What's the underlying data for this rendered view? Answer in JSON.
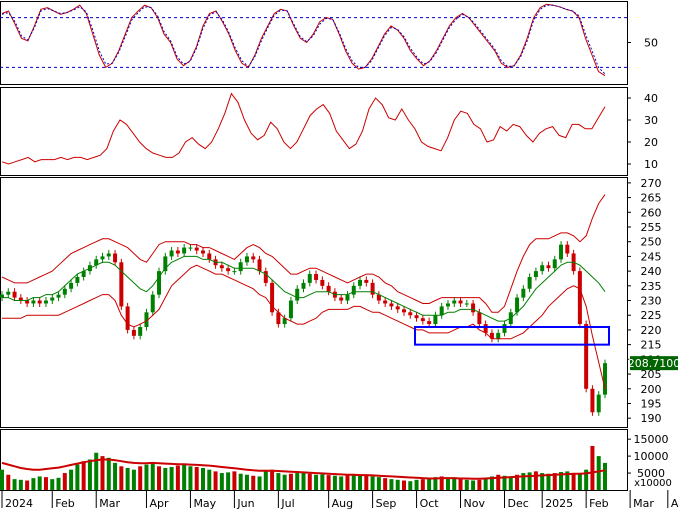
{
  "chart_data": [
    {
      "panel": "stochastic",
      "type": "line",
      "ytick_labels": [
        "50"
      ],
      "yticks": [
        50
      ],
      "ylim": [
        0,
        100
      ],
      "reference_lines": [
        80,
        20
      ],
      "series": [
        {
          "color": "#cc0000",
          "values": [
            85,
            88,
            72,
            55,
            52,
            70,
            90,
            92,
            88,
            84,
            86,
            90,
            95,
            85,
            60,
            35,
            20,
            25,
            40,
            60,
            80,
            88,
            95,
            92,
            80,
            60,
            50,
            30,
            22,
            28,
            45,
            70,
            85,
            88,
            75,
            60,
            40,
            25,
            20,
            35,
            55,
            70,
            85,
            90,
            88,
            70,
            55,
            50,
            60,
            75,
            80,
            78,
            60,
            40,
            25,
            18,
            20,
            30,
            45,
            60,
            70,
            65,
            55,
            40,
            30,
            22,
            28,
            40,
            55,
            70,
            80,
            85,
            80,
            70,
            60,
            50,
            40,
            25,
            20,
            22,
            35,
            55,
            80,
            92,
            96,
            95,
            93,
            90,
            88,
            80,
            55,
            35,
            15,
            10
          ]
        },
        {
          "color": "#0000cc",
          "dashed": true,
          "values": [
            84,
            86,
            75,
            58,
            53,
            68,
            88,
            91,
            88,
            85,
            86,
            89,
            93,
            87,
            65,
            40,
            24,
            25,
            38,
            57,
            77,
            86,
            93,
            92,
            82,
            63,
            52,
            33,
            24,
            27,
            43,
            67,
            83,
            87,
            77,
            62,
            43,
            28,
            21,
            33,
            52,
            68,
            83,
            89,
            88,
            72,
            57,
            51,
            58,
            72,
            79,
            78,
            62,
            43,
            28,
            20,
            20,
            28,
            43,
            58,
            68,
            66,
            57,
            43,
            32,
            24,
            27,
            38,
            53,
            68,
            78,
            84,
            80,
            72,
            62,
            52,
            42,
            28,
            21,
            22,
            33,
            52,
            77,
            90,
            95,
            95,
            93,
            90,
            88,
            82,
            60,
            40,
            20,
            12
          ]
        }
      ]
    },
    {
      "panel": "indicator",
      "type": "line",
      "ytick_labels": [
        "10",
        "20",
        "30",
        "40"
      ],
      "yticks": [
        10,
        20,
        30,
        40
      ],
      "ylim": [
        5,
        45
      ],
      "series": [
        {
          "color": "#cc0000",
          "values": [
            11,
            10,
            11,
            12,
            13,
            11,
            12,
            12,
            12,
            13,
            12,
            13,
            13,
            12,
            13,
            14,
            17,
            25,
            30,
            28,
            24,
            20,
            17,
            15,
            14,
            13,
            13,
            15,
            20,
            22,
            19,
            17,
            20,
            26,
            33,
            42,
            38,
            30,
            24,
            21,
            23,
            29,
            26,
            20,
            17,
            20,
            26,
            32,
            35,
            37,
            33,
            25,
            21,
            17,
            19,
            25,
            35,
            40,
            37,
            31,
            30,
            35,
            30,
            26,
            20,
            18,
            17,
            16,
            22,
            30,
            34,
            33,
            28,
            26,
            20,
            21,
            27,
            25,
            28,
            27,
            23,
            20,
            24,
            26,
            27,
            23,
            22,
            28,
            28,
            26,
            26,
            31,
            36
          ]
        }
      ]
    },
    {
      "panel": "price",
      "type": "candlestick",
      "ytick_labels": [
        "190",
        "195",
        "200",
        "205",
        "210",
        "215",
        "220",
        "225",
        "230",
        "235",
        "240",
        "245",
        "250",
        "255",
        "260",
        "265",
        "270"
      ],
      "yticks": [
        190,
        195,
        200,
        205,
        210,
        215,
        220,
        225,
        230,
        235,
        240,
        245,
        250,
        255,
        260,
        265,
        270
      ],
      "ylim": [
        187,
        272
      ],
      "last_price_label": "208.7100",
      "last_price": 208.71,
      "close": [
        232,
        233,
        231,
        230,
        229,
        230,
        229,
        230,
        231,
        232,
        234,
        236,
        238,
        240,
        242,
        244,
        245,
        246,
        243,
        228,
        220,
        218,
        221,
        226,
        232,
        240,
        245,
        247,
        246,
        248,
        248,
        247,
        246,
        244,
        242,
        241,
        240,
        240,
        243,
        245,
        244,
        240,
        236,
        226,
        222,
        224,
        230,
        234,
        236,
        239,
        237,
        235,
        233,
        231,
        230,
        232,
        235,
        237,
        236,
        232,
        230,
        229,
        228,
        227,
        226,
        225,
        224,
        223,
        222,
        225,
        228,
        229,
        230,
        229,
        229,
        226,
        222,
        219,
        217,
        219,
        222,
        226,
        231,
        234,
        238,
        240,
        242,
        241,
        244,
        249,
        246,
        240,
        222,
        200,
        192,
        198,
        208.71
      ],
      "bollinger_upper": [
        238,
        237,
        236,
        236,
        236,
        237,
        238,
        239,
        240,
        242,
        244,
        246,
        247,
        248,
        249,
        250,
        251,
        251,
        250,
        249,
        248,
        246,
        244,
        243,
        246,
        249,
        250,
        250,
        250,
        250,
        249,
        249,
        248,
        248,
        247,
        246,
        245,
        244,
        246,
        248,
        249,
        248,
        246,
        245,
        243,
        241,
        239,
        239,
        240,
        241,
        241,
        240,
        239,
        238,
        237,
        236,
        237,
        238,
        239,
        239,
        238,
        236,
        235,
        233,
        232,
        231,
        230,
        229,
        229,
        230,
        231,
        231,
        231,
        231,
        231,
        231,
        231,
        229,
        226,
        226,
        228,
        234,
        240,
        245,
        249,
        251,
        251,
        251,
        252,
        253,
        253,
        252,
        250,
        252,
        258,
        263,
        266
      ],
      "bollinger_mid": [
        231,
        231,
        230,
        230,
        230,
        231,
        231,
        232,
        232,
        233,
        235,
        237,
        239,
        240,
        241,
        242,
        243,
        243,
        242,
        240,
        238,
        236,
        234,
        233,
        235,
        238,
        241,
        243,
        244,
        245,
        245,
        245,
        244,
        244,
        243,
        243,
        242,
        241,
        241,
        241,
        241,
        240,
        239,
        237,
        235,
        233,
        232,
        231,
        231,
        232,
        233,
        233,
        233,
        232,
        232,
        232,
        233,
        233,
        233,
        233,
        232,
        231,
        230,
        229,
        228,
        227,
        226,
        225,
        225,
        225,
        225,
        226,
        226,
        227,
        227,
        227,
        226,
        225,
        224,
        223,
        223,
        224,
        226,
        228,
        231,
        234,
        236,
        238,
        240,
        242,
        243,
        243,
        242,
        240,
        238,
        236,
        233
      ],
      "bollinger_lower": [
        224,
        224,
        224,
        224,
        225,
        225,
        225,
        225,
        225,
        225,
        226,
        227,
        228,
        229,
        230,
        231,
        232,
        232,
        230,
        225,
        222,
        221,
        222,
        223,
        225,
        227,
        231,
        235,
        237,
        239,
        241,
        242,
        241,
        240,
        239,
        239,
        238,
        237,
        236,
        235,
        234,
        232,
        231,
        228,
        226,
        224,
        223,
        222,
        222,
        223,
        224,
        226,
        227,
        227,
        227,
        227,
        228,
        228,
        227,
        226,
        226,
        225,
        224,
        223,
        222,
        221,
        220,
        220,
        219,
        219,
        219,
        219,
        220,
        221,
        221,
        222,
        220,
        219,
        217,
        217,
        217,
        217,
        218,
        219,
        221,
        223,
        225,
        228,
        230,
        232,
        234,
        235,
        234,
        228,
        218,
        209,
        200
      ],
      "highlight_band": [
        215,
        221
      ]
    },
    {
      "panel": "volume",
      "type": "bar",
      "ytick_labels": [
        "5000",
        "10000",
        "15000"
      ],
      "yticks": [
        5000,
        10000,
        15000
      ],
      "ylim": [
        0,
        18000
      ],
      "unit_label": "x10000",
      "values": [
        6000,
        4500,
        3200,
        3000,
        2800,
        3500,
        4000,
        3800,
        3200,
        3600,
        5000,
        6000,
        7500,
        8500,
        9000,
        11000,
        10000,
        9500,
        8000,
        7000,
        6500,
        6000,
        7000,
        7500,
        8000,
        7000,
        6500,
        6800,
        7200,
        7500,
        7000,
        6800,
        6500,
        6000,
        5500,
        5000,
        5200,
        5500,
        4800,
        4500,
        4200,
        4000,
        5500,
        6000,
        5000,
        4500,
        4800,
        5000,
        5200,
        4800,
        4500,
        4600,
        4400,
        4200,
        4000,
        4300,
        4500,
        4400,
        4200,
        4000,
        3800,
        3500,
        3200,
        3000,
        2800,
        2600,
        3000,
        3200,
        3500,
        3800,
        4000,
        3600,
        3400,
        3200,
        3000,
        2800,
        3000,
        3500,
        4000,
        4500,
        4200,
        4000,
        4500,
        5000,
        5200,
        5500,
        5000,
        4800,
        5000,
        5300,
        5500,
        5000,
        4800,
        6000,
        13000,
        10000,
        8000
      ],
      "ma_values": [
        8000,
        7500,
        7000,
        6500,
        6200,
        6000,
        6000,
        6200,
        6400,
        6600,
        7000,
        7400,
        7800,
        8200,
        8500,
        8800,
        9000,
        9000,
        8800,
        8500,
        8200,
        8000,
        7900,
        7900,
        8000,
        7900,
        7800,
        7700,
        7600,
        7600,
        7500,
        7400,
        7300,
        7200,
        7000,
        6800,
        6600,
        6400,
        6200,
        6000,
        5800,
        5700,
        5700,
        5700,
        5600,
        5500,
        5400,
        5300,
        5200,
        5100,
        5000,
        4900,
        4800,
        4700,
        4600,
        4500,
        4500,
        4400,
        4400,
        4300,
        4200,
        4100,
        4000,
        3900,
        3800,
        3700,
        3600,
        3500,
        3400,
        3400,
        3500,
        3500,
        3500,
        3400,
        3400,
        3300,
        3300,
        3400,
        3500,
        3600,
        3700,
        3800,
        3900,
        4000,
        4100,
        4200,
        4300,
        4400,
        4500,
        4600,
        4700,
        4800,
        4800,
        4900,
        5200,
        5500,
        5800
      ]
    }
  ],
  "x_axis": {
    "labels": [
      "2024",
      "Feb",
      "Mar",
      "Apr",
      "May",
      "Jun",
      "Jul",
      "Aug",
      "Sep",
      "Oct",
      "Nov",
      "Dec",
      "2025",
      "Feb",
      "Mar",
      "Apr"
    ],
    "positions_index": [
      0,
      8,
      15,
      23,
      30,
      37,
      44,
      52,
      59,
      66,
      73,
      80,
      86,
      93,
      100,
      106
    ]
  },
  "colors": {
    "up": "#008000",
    "down": "#cc0000",
    "stoch_k": "#cc0000",
    "stoch_d": "#0000cc",
    "band": "#cc0000",
    "mid": "#008000",
    "highlight": "#0000ff",
    "volume_ma": "#cc0000",
    "price_tag_bg": "#006400"
  }
}
